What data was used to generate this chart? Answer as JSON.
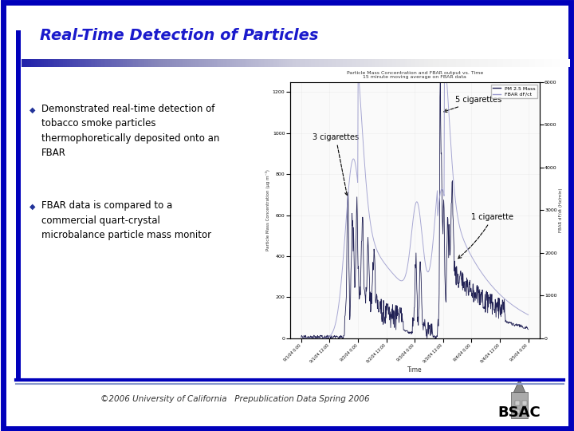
{
  "title": "Real-Time Detection of Particles",
  "title_color": "#1a1acc",
  "title_fontsize": 14,
  "bg_color": "#ffffff",
  "border_color": "#0000bb",
  "border_width": 5,
  "bullet_color": "#223399",
  "bullet_text_1": "Demonstrated real-time detection of\ntobacco smoke particles\nthermophoretically deposited onto an\nFBAR",
  "bullet_text_2": "FBAR data is compared to a\ncommercial quart-crystal\nmicrobalance particle mass monitor",
  "footer_text": "©2006 University of California   Prepublication Data Spring 2006",
  "footer_color": "#333333",
  "chart_title_line1": "Particle Mass Concentration and FBAR output vs. Time",
  "chart_title_line2": "15 minute moving average on FBAR data",
  "chart_ylabel_left": "Particle Mass Concentration (μg m⁻³)",
  "chart_ylabel_right": "FBAR dF/dt (Hz/min)",
  "chart_xlabel": "Time",
  "annotation_3cig": "3 cigarettes",
  "annotation_5cig": "5 cigarettes",
  "annotation_1cig": "1 cigarette",
  "legend_pm25": "PM 2.5 Mass",
  "legend_fbar": "FBAR dF/ct",
  "yticks_left": [
    0,
    200,
    400,
    600,
    800,
    1000,
    1200
  ],
  "ylim_left": [
    0,
    1250
  ],
  "yticks_right": [
    0,
    1000,
    2000,
    3000,
    4000,
    5000,
    6000
  ],
  "ylim_right": [
    0,
    6000
  ],
  "time_labels": [
    "9/1/04 0:00",
    "9/1/04 12:00",
    "9/2/04 0:00",
    "9/2/04 12:00",
    "9/3/04 0:00",
    "9/3/04 12:00",
    "9/4/04 0:00",
    "9/4/04 12:00",
    "9/5/04 0:00"
  ]
}
